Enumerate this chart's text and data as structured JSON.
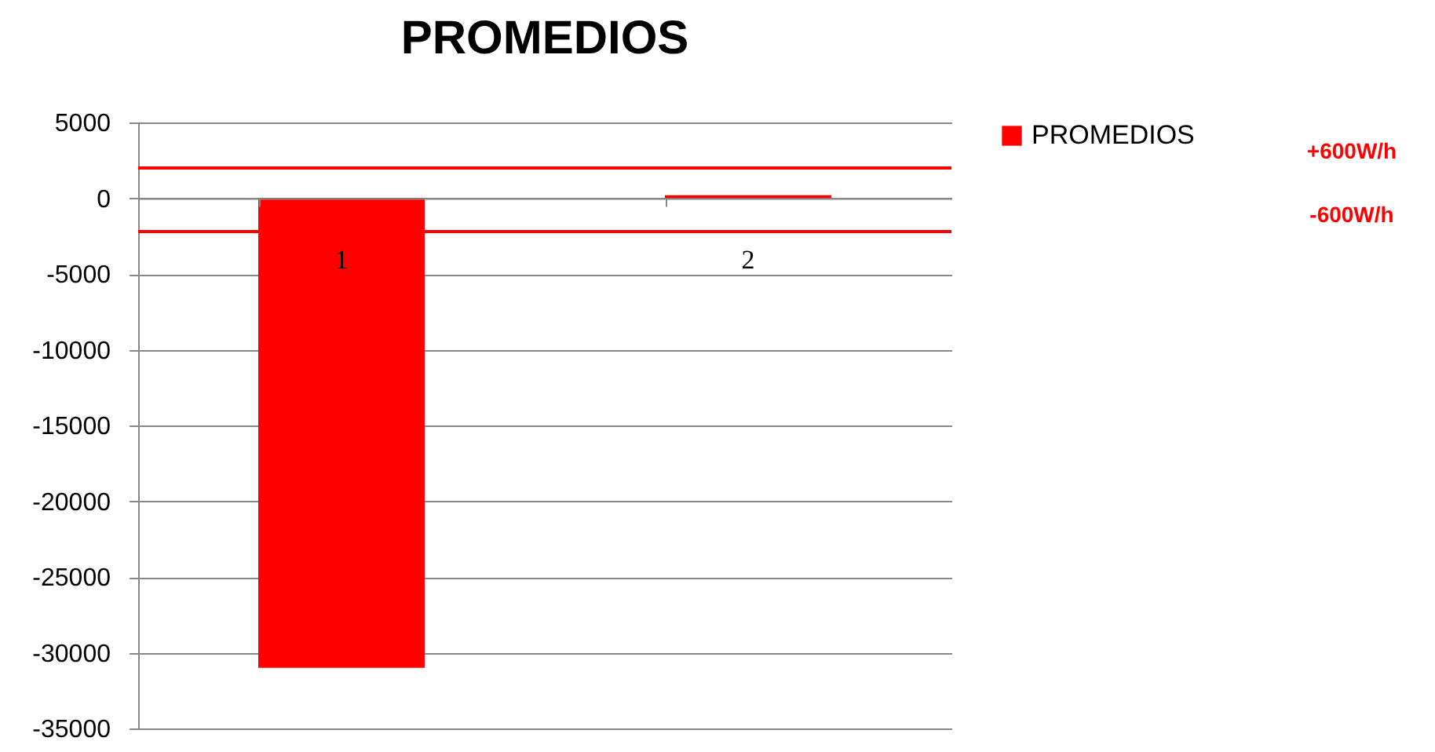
{
  "chart_data": {
    "type": "bar",
    "title": "PROMEDIOS",
    "categories": [
      "1",
      "2"
    ],
    "series": [
      {
        "name": "PROMEDIOS",
        "color": "#ff0000",
        "values": [
          -31000,
          200
        ]
      }
    ],
    "ylim": [
      -35000,
      5000
    ],
    "yticks": [
      -35000,
      -30000,
      -25000,
      -20000,
      -15000,
      -10000,
      -5000,
      0,
      5000
    ],
    "grid": "y",
    "legend": "right",
    "ref_lines": [
      {
        "axis": "y",
        "value": 2000,
        "label": "+600W/h",
        "color": "#ff0000"
      },
      {
        "axis": "y",
        "value": -2200,
        "label": "-600W/h",
        "color": "#ff0000"
      }
    ]
  }
}
